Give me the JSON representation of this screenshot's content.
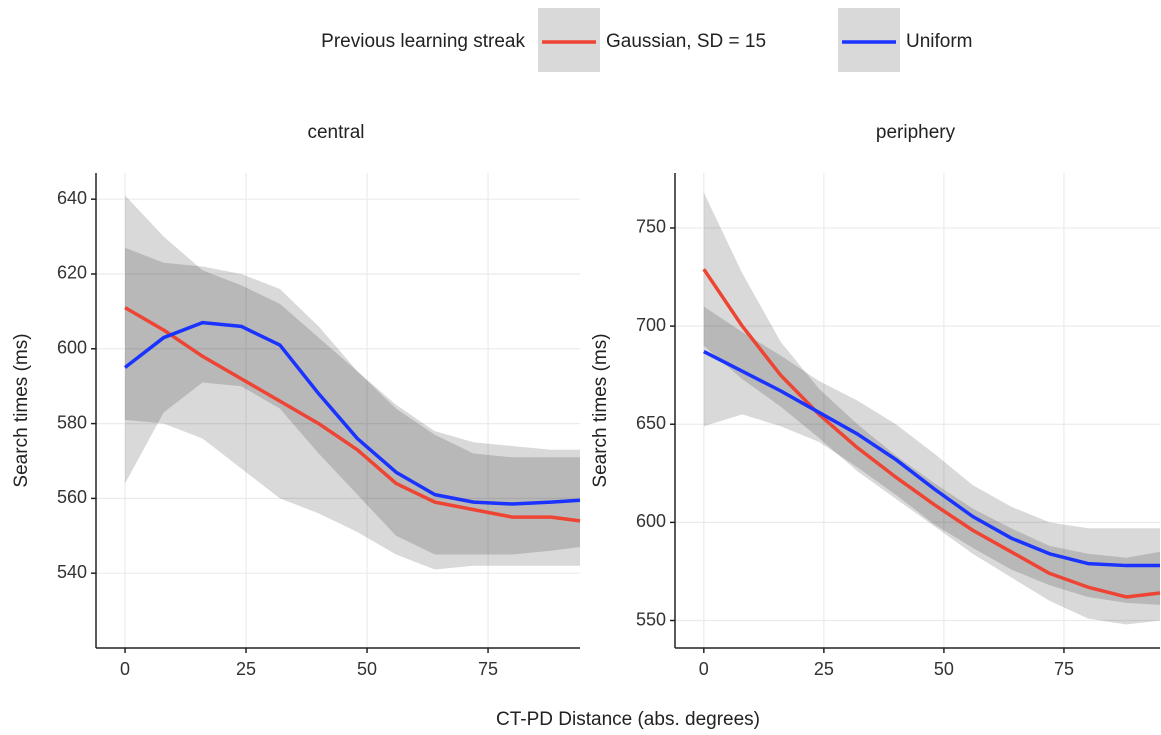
{
  "legend_title": "Previous learning streak",
  "xlabel": "CT-PD Distance (abs. degrees)",
  "chart_data": [
    {
      "type": "line",
      "title": "central",
      "ylabel": "Search times (ms)",
      "grid": true,
      "x": [
        0,
        8,
        16,
        24,
        32,
        40,
        48,
        56,
        64,
        72,
        80,
        88,
        94
      ],
      "xlim": [
        -6,
        94
      ],
      "ylim": [
        520,
        647
      ],
      "xticks": [
        0,
        25,
        50,
        75
      ],
      "yticks": [
        540,
        560,
        580,
        600,
        620,
        640
      ],
      "series": [
        {
          "name": "Gaussian, SD = 15",
          "color": "#ee4433",
          "values": [
            611,
            605,
            598,
            592,
            586,
            580,
            573,
            564,
            559,
            557,
            555,
            555,
            554
          ],
          "upper": [
            641,
            630,
            621,
            617,
            612,
            603,
            594,
            584,
            577,
            572,
            571,
            571,
            571
          ],
          "lower": [
            581,
            580,
            576,
            568,
            560,
            556,
            551,
            545,
            541,
            542,
            542,
            542,
            542
          ]
        },
        {
          "name": "Uniform",
          "color": "#1a33ff",
          "values": [
            595,
            603,
            607,
            606,
            601,
            588,
            576,
            567,
            561,
            559,
            558.5,
            559,
            559.5
          ],
          "upper": [
            627,
            623,
            622,
            620,
            616,
            606,
            594,
            585,
            578,
            575,
            574,
            573,
            573
          ],
          "lower": [
            564,
            583,
            591,
            590,
            584,
            572,
            561,
            550,
            545,
            545,
            545,
            546,
            547
          ]
        }
      ]
    },
    {
      "type": "line",
      "title": "periphery",
      "ylabel": "Search times (ms)",
      "grid": true,
      "x": [
        0,
        8,
        16,
        24,
        32,
        40,
        48,
        56,
        64,
        72,
        80,
        88,
        95
      ],
      "xlim": [
        -6,
        95
      ],
      "ylim": [
        536,
        778
      ],
      "xticks": [
        0,
        25,
        50,
        75
      ],
      "yticks": [
        550,
        600,
        650,
        700,
        750
      ],
      "series": [
        {
          "name": "Gaussian, SD = 15",
          "color": "#ee4433",
          "values": [
            729,
            700,
            675,
            655,
            638,
            623,
            609,
            596,
            585,
            574,
            567,
            562,
            564
          ],
          "upper": [
            768,
            727,
            692,
            668,
            650,
            634,
            620,
            607,
            597,
            588,
            584,
            582,
            585
          ],
          "lower": [
            690,
            673,
            659,
            643,
            626,
            612,
            598,
            584,
            572,
            560,
            551,
            548,
            550
          ]
        },
        {
          "name": "Uniform",
          "color": "#1a33ff",
          "values": [
            687,
            677,
            667,
            656,
            645,
            632,
            617,
            603,
            592,
            584,
            579,
            578,
            578
          ],
          "upper": [
            710,
            697,
            685,
            672,
            662,
            650,
            635,
            619,
            608,
            600,
            597,
            597,
            597
          ],
          "lower": [
            649,
            655,
            649,
            641,
            628,
            614,
            599,
            587,
            576,
            568,
            562,
            559,
            558
          ]
        }
      ]
    }
  ]
}
